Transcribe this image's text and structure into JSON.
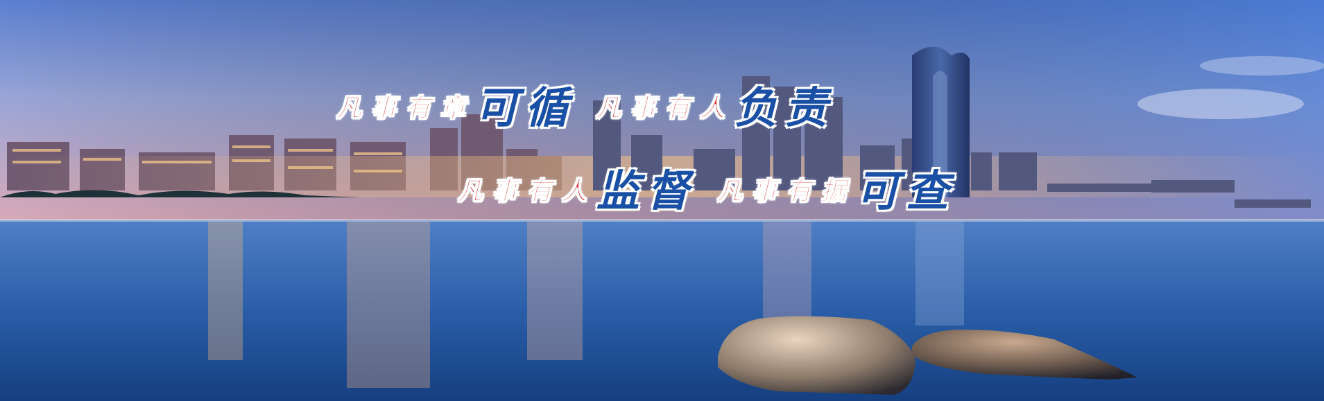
{
  "banner": {
    "line1": {
      "part1_small": "凡事有章",
      "part1_big": "可循",
      "part2_small": "凡事有人",
      "part2_big": "负责"
    },
    "line2": {
      "part1_small": "凡事有人",
      "part1_big": "监督",
      "part2_small": "凡事有据",
      "part2_big": "可查"
    }
  },
  "colors": {
    "slogan_small": "#d9242b",
    "slogan_big": "#1a4fa6",
    "sky_top": "#5b7fd0",
    "sky_horizon": "#d9a9b8",
    "water": "#2a5ea8"
  }
}
